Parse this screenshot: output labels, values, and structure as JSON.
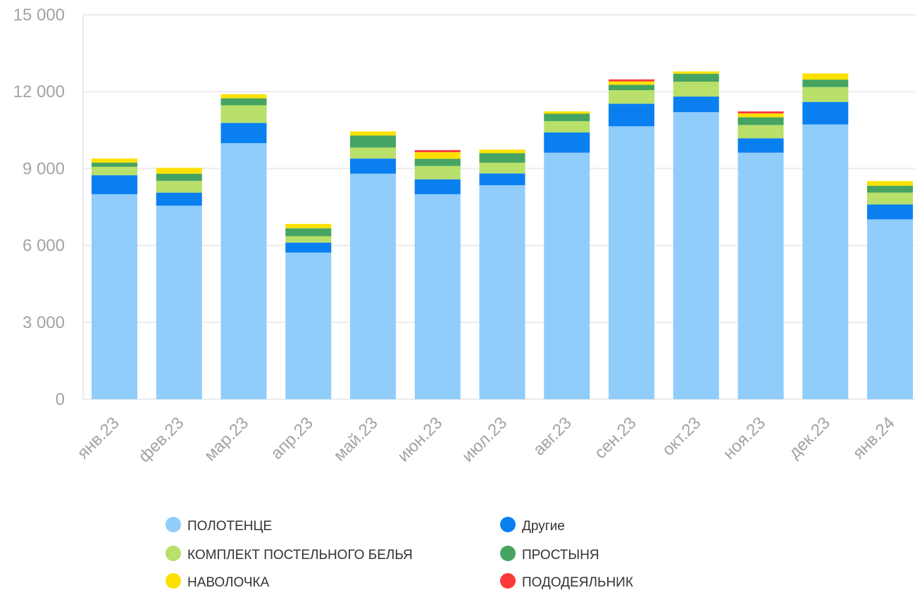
{
  "chart_data": {
    "type": "bar",
    "stacked": true,
    "categories": [
      "янв.23",
      "фев.23",
      "мар.23",
      "апр.23",
      "май.23",
      "июн.23",
      "июл.23",
      "авг.23",
      "сен.23",
      "окт.23",
      "ноя.23",
      "дек.23",
      "янв.24"
    ],
    "ylim": [
      0,
      15000
    ],
    "yticks": [
      0,
      3000,
      6000,
      9000,
      12000,
      15000
    ],
    "ytick_labels": [
      "0",
      "3 000",
      "6 000",
      "9 000",
      "12 000",
      "15 000"
    ],
    "grid": true,
    "legend_position": "bottom",
    "series": [
      {
        "name": "ПОЛОТЕНЦЕ",
        "color": "#90cdfb",
        "values": [
          8000,
          7550,
          9990,
          5720,
          8800,
          8000,
          8350,
          9620,
          10650,
          11200,
          9620,
          10720,
          7020
        ]
      },
      {
        "name": "Другие",
        "color": "#0a7ff0",
        "values": [
          740,
          510,
          790,
          390,
          590,
          580,
          460,
          790,
          880,
          610,
          560,
          880,
          580
        ]
      },
      {
        "name": "КОМПЛЕКТ ПОСТЕЛЬНОГО БЕЛЬЯ",
        "color": "#b8e06a",
        "values": [
          330,
          460,
          690,
          250,
          430,
          520,
          420,
          440,
          530,
          580,
          520,
          580,
          460
        ]
      },
      {
        "name": "ПРОСТЫНЯ",
        "color": "#45a462",
        "values": [
          160,
          280,
          270,
          310,
          470,
          280,
          370,
          290,
          210,
          310,
          300,
          290,
          270
        ]
      },
      {
        "name": "НАВОЛОЧКА",
        "color": "#fce100",
        "values": [
          160,
          230,
          160,
          170,
          160,
          260,
          140,
          90,
          130,
          90,
          150,
          240,
          180
        ]
      },
      {
        "name": "ПОДОДЕЯЛЬНИК",
        "color": "#fa3a3a",
        "values": [
          0,
          0,
          0,
          0,
          0,
          80,
          0,
          0,
          80,
          0,
          80,
          0,
          0
        ]
      }
    ]
  },
  "legend": [
    {
      "label": "ПОЛОТЕНЦЕ",
      "color": "#90cdfb"
    },
    {
      "label": "Другие",
      "color": "#0a7ff0"
    },
    {
      "label": "КОМПЛЕКТ ПОСТЕЛЬНОГО БЕЛЬЯ",
      "color": "#b8e06a"
    },
    {
      "label": "ПРОСТЫНЯ",
      "color": "#45a462"
    },
    {
      "label": "НАВОЛОЧКА",
      "color": "#fce100"
    },
    {
      "label": "ПОДОДЕЯЛЬНИК",
      "color": "#fa3a3a"
    }
  ]
}
